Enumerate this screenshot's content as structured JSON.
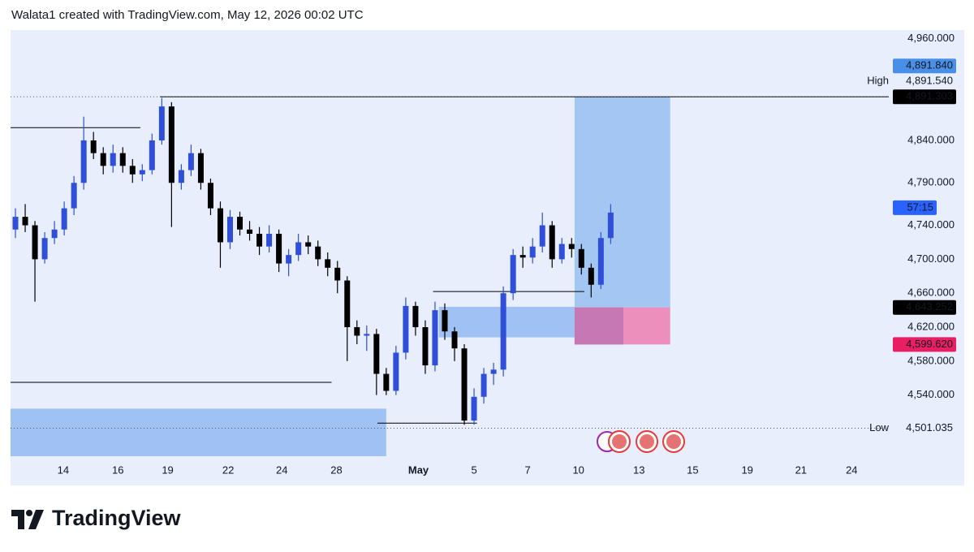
{
  "header": "Walata1 created with TradingView.com, May 12, 2026 00:02 UTC",
  "brand": "TradingView",
  "chart_data": {
    "type": "candlestick",
    "up_color": "#2f4fd8",
    "down_color": "#000000",
    "xlim": [
      -0.5,
      89.5
    ],
    "xticks": [
      {
        "value": 4.9,
        "label": "14"
      },
      {
        "value": 10.5,
        "label": "16"
      },
      {
        "value": 15.6,
        "label": "19"
      },
      {
        "value": 21.8,
        "label": "22"
      },
      {
        "value": 27.3,
        "label": "24"
      },
      {
        "value": 32.9,
        "label": "28"
      },
      {
        "value": 41.3,
        "label": "May"
      },
      {
        "value": 47.0,
        "label": "5"
      },
      {
        "value": 52.5,
        "label": "7"
      },
      {
        "value": 57.7,
        "label": "10"
      },
      {
        "value": 63.9,
        "label": "13"
      },
      {
        "value": 69.4,
        "label": "15"
      },
      {
        "value": 75.0,
        "label": "19"
      },
      {
        "value": 80.5,
        "label": "21"
      },
      {
        "value": 85.7,
        "label": "24"
      }
    ],
    "ylim": [
      4468,
      4970
    ],
    "yticks": [
      {
        "value": 4960,
        "label": "4,960.000"
      },
      {
        "value": 4840,
        "label": "4,840.000"
      },
      {
        "value": 4790,
        "label": "4,790.000"
      },
      {
        "value": 4740,
        "label": "4,740.000"
      },
      {
        "value": 4700,
        "label": "4,700.000"
      },
      {
        "value": 4660,
        "label": "4,660.000"
      },
      {
        "value": 4620,
        "label": "4,620.000"
      },
      {
        "value": 4580,
        "label": "4,580.000"
      },
      {
        "value": 4540,
        "label": "4,540.000"
      }
    ],
    "ohlc": [
      [
        4735,
        4760,
        4725,
        4750
      ],
      [
        4750,
        4765,
        4732,
        4740
      ],
      [
        4740,
        4745,
        4650,
        4700
      ],
      [
        4700,
        4732,
        4695,
        4725
      ],
      [
        4725,
        4745,
        4718,
        4735
      ],
      [
        4735,
        4768,
        4728,
        4760
      ],
      [
        4760,
        4798,
        4752,
        4790
      ],
      [
        4790,
        4868,
        4782,
        4840
      ],
      [
        4840,
        4850,
        4818,
        4825
      ],
      [
        4825,
        4832,
        4800,
        4810
      ],
      [
        4810,
        4835,
        4802,
        4825
      ],
      [
        4825,
        4832,
        4802,
        4810
      ],
      [
        4810,
        4818,
        4790,
        4800
      ],
      [
        4800,
        4812,
        4792,
        4805
      ],
      [
        4805,
        4848,
        4800,
        4840
      ],
      [
        4840,
        4890,
        4835,
        4880
      ],
      [
        4880,
        4885,
        4738,
        4790
      ],
      [
        4790,
        4812,
        4782,
        4805
      ],
      [
        4805,
        4835,
        4798,
        4825
      ],
      [
        4825,
        4830,
        4782,
        4790
      ],
      [
        4790,
        4795,
        4752,
        4760
      ],
      [
        4760,
        4768,
        4690,
        4720
      ],
      [
        4720,
        4758,
        4712,
        4750
      ],
      [
        4750,
        4756,
        4728,
        4735
      ],
      [
        4735,
        4745,
        4722,
        4730
      ],
      [
        4730,
        4738,
        4705,
        4715
      ],
      [
        4715,
        4740,
        4708,
        4730
      ],
      [
        4730,
        4735,
        4685,
        4695
      ],
      [
        4695,
        4712,
        4680,
        4705
      ],
      [
        4705,
        4730,
        4698,
        4720
      ],
      [
        4720,
        4728,
        4706,
        4715
      ],
      [
        4715,
        4722,
        4692,
        4700
      ],
      [
        4700,
        4708,
        4680,
        4690
      ],
      [
        4690,
        4698,
        4660,
        4675
      ],
      [
        4675,
        4680,
        4580,
        4620
      ],
      [
        4620,
        4628,
        4600,
        4610
      ],
      [
        4610,
        4622,
        4592,
        4612
      ],
      [
        4612,
        4618,
        4540,
        4565
      ],
      [
        4565,
        4572,
        4540,
        4545
      ],
      [
        4545,
        4598,
        4540,
        4590
      ],
      [
        4590,
        4655,
        4582,
        4645
      ],
      [
        4645,
        4650,
        4610,
        4620
      ],
      [
        4620,
        4628,
        4565,
        4575
      ],
      [
        4575,
        4650,
        4568,
        4640
      ],
      [
        4640,
        4648,
        4605,
        4615
      ],
      [
        4615,
        4620,
        4580,
        4595
      ],
      [
        4595,
        4600,
        4505,
        4510
      ],
      [
        4510,
        4548,
        4505,
        4538
      ],
      [
        4538,
        4572,
        4530,
        4565
      ],
      [
        4565,
        4578,
        4552,
        4570
      ],
      [
        4570,
        4668,
        4562,
        4660
      ],
      [
        4660,
        4712,
        4652,
        4705
      ],
      [
        4705,
        4715,
        4690,
        4702
      ],
      [
        4702,
        4725,
        4695,
        4715
      ],
      [
        4715,
        4755,
        4708,
        4740
      ],
      [
        4740,
        4745,
        4690,
        4700
      ],
      [
        4700,
        4725,
        4695,
        4718
      ],
      [
        4718,
        4725,
        4702,
        4712
      ],
      [
        4712,
        4718,
        4682,
        4690
      ],
      [
        4690,
        4695,
        4655,
        4670
      ],
      [
        4670,
        4732,
        4665,
        4725
      ],
      [
        4725,
        4765,
        4718,
        4755
      ]
    ],
    "zones": [
      {
        "top": 4524,
        "bottom": 4468,
        "x0": -0.5,
        "x1": 38.0,
        "color": "#9fc1f3"
      },
      {
        "top": 4644,
        "bottom": 4608,
        "x0": 43.4,
        "x1": 57.3,
        "color": "#9fc1f3"
      },
      {
        "top": 4891.303,
        "bottom": 4643.252,
        "x0": 57.3,
        "x1": 67.1,
        "color": "#a4c6f3"
      },
      {
        "top": 4643.252,
        "bottom": 4599.62,
        "x0": 57.3,
        "x1": 67.1,
        "color": "#ec8fbd"
      },
      {
        "top": 4643.252,
        "bottom": 4599.62,
        "x0": 57.3,
        "x1": 62.3,
        "color": "#c578b4"
      }
    ],
    "lines": [
      {
        "price": 4855,
        "x0": -0.5,
        "x1": 12.8
      },
      {
        "price": 4555,
        "x0": -0.5,
        "x1": 32.4
      },
      {
        "price": 4507,
        "x0": 37.1,
        "x1": 47.3
      },
      {
        "price": 4662,
        "x0": 42.8,
        "x1": 58.3
      },
      {
        "price": 4891.303,
        "x0": 14.8,
        "x1": 89.5
      }
    ],
    "tags": [
      {
        "value": 4891.84,
        "label": "4,891.840",
        "color": "#4a8fe7"
      },
      {
        "value": 4891.54,
        "label": "4,891.540",
        "side": "High"
      },
      {
        "value": 4891.303,
        "label": "4,891.303",
        "color": "#000000",
        "dotted": true
      },
      {
        "value": 4643.252,
        "label": "4,643.252",
        "color": "#000000"
      },
      {
        "value": 4599.62,
        "label": "4,599.620",
        "color": "#e91e63"
      },
      {
        "value": 4501.035,
        "label": "4,501.035",
        "side": "Low",
        "dotted": true
      }
    ],
    "countdown": {
      "label": "57:15",
      "color": "#2962ff"
    }
  }
}
